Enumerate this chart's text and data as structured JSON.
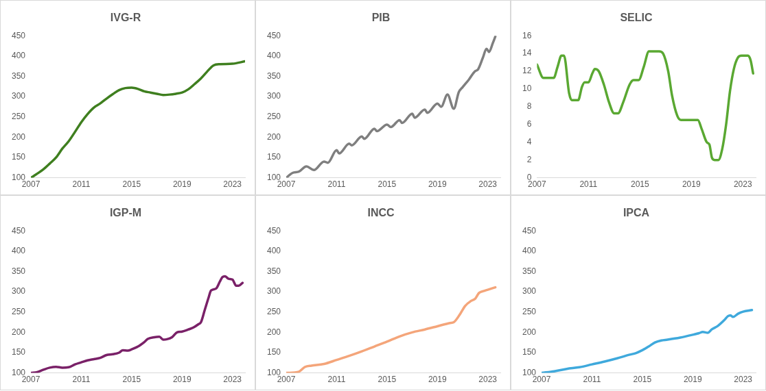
{
  "chart_data": [
    {
      "type": "line",
      "title": "IVG-R",
      "x": [
        2007,
        2007.5,
        2008,
        2008.5,
        2009,
        2009.5,
        2010,
        2010.5,
        2011,
        2011.5,
        2012,
        2012.5,
        2013,
        2013.5,
        2014,
        2014.5,
        2015,
        2015.5,
        2016,
        2016.5,
        2017,
        2017.5,
        2018,
        2018.5,
        2019,
        2019.5,
        2020,
        2020.5,
        2021,
        2021.5,
        2022,
        2023,
        2024
      ],
      "series": [
        {
          "color": "#3f7f1f",
          "values": [
            100,
            110,
            121,
            135,
            150,
            172,
            190,
            213,
            237,
            257,
            273,
            283,
            295,
            306,
            316,
            321,
            322,
            319,
            313,
            310,
            307,
            304,
            305,
            307,
            310,
            318,
            331,
            345,
            362,
            377,
            380,
            381,
            387
          ]
        }
      ],
      "xlim": [
        2007,
        2024
      ],
      "xticks": [
        2007,
        2011,
        2015,
        2019,
        2023
      ],
      "ylim": [
        100,
        450
      ],
      "yticks": [
        100,
        150,
        200,
        250,
        300,
        350,
        400,
        450
      ]
    },
    {
      "type": "line",
      "title": "PIB",
      "x": [
        2007,
        2007.5,
        2008,
        2008.6,
        2009.2,
        2010,
        2010.3,
        2011,
        2011.2,
        2012,
        2012.2,
        2013,
        2013.2,
        2014,
        2014.2,
        2015,
        2015.3,
        2016,
        2016.2,
        2017,
        2017.2,
        2018,
        2018.2,
        2019,
        2019.3,
        2019.8,
        2020.3,
        2020.7,
        2021,
        2021.5,
        2022,
        2022.2,
        2022.6,
        2022.9,
        2023.1,
        2023.4,
        2023.6
      ],
      "series": [
        {
          "color": "#7f7f7f",
          "values": [
            100,
            112,
            115,
            128,
            119,
            140,
            137,
            168,
            160,
            184,
            180,
            202,
            196,
            221,
            215,
            231,
            225,
            242,
            235,
            258,
            248,
            268,
            260,
            283,
            275,
            305,
            270,
            311,
            323,
            342,
            363,
            366,
            395,
            418,
            410,
            432,
            448
          ]
        }
      ],
      "xlim": [
        2007,
        2024
      ],
      "xticks": [
        2007,
        2011,
        2015,
        2019,
        2023
      ],
      "ylim": [
        100,
        450
      ],
      "yticks": [
        100,
        150,
        200,
        250,
        300,
        350,
        400,
        450
      ]
    },
    {
      "type": "line",
      "title": "SELIC",
      "x": [
        2007,
        2007.5,
        2008,
        2008.3,
        2008.6,
        2008.9,
        2009.1,
        2009.5,
        2009.7,
        2010.2,
        2010.5,
        2010.7,
        2011,
        2011.3,
        2011.5,
        2011.8,
        2012.2,
        2012.6,
        2013,
        2013.3,
        2013.7,
        2014.2,
        2014.5,
        2014.9,
        2015.3,
        2015.7,
        2016.5,
        2016.8,
        2017.2,
        2017.5,
        2017.9,
        2018.2,
        2019,
        2019.5,
        2019.8,
        2020.2,
        2020.4,
        2020.6,
        2020.8,
        2021.1,
        2021.4,
        2021.7,
        2022,
        2022.3,
        2022.6,
        2022.9,
        2023.4,
        2023.6,
        2023.8
      ],
      "series": [
        {
          "color": "#5aa832",
          "values": [
            12.75,
            11.25,
            11.25,
            11.25,
            12.5,
            13.75,
            13.75,
            9.5,
            8.75,
            8.75,
            10.25,
            10.75,
            10.75,
            11.75,
            12.25,
            12,
            10.5,
            8.5,
            7.25,
            7.25,
            8.5,
            10.5,
            11,
            11,
            12.5,
            14.25,
            14.25,
            14,
            12,
            9.25,
            7,
            6.5,
            6.5,
            6.5,
            5.5,
            4,
            3.75,
            2.25,
            2,
            2,
            3.25,
            6,
            9.75,
            12.25,
            13.5,
            13.75,
            13.75,
            13.25,
            11.75
          ]
        }
      ],
      "xlim": [
        2007,
        2024
      ],
      "xticks": [
        2007,
        2011,
        2015,
        2019,
        2023
      ],
      "ylim": [
        0,
        16
      ],
      "yticks": [
        0,
        2,
        4,
        6,
        8,
        10,
        12,
        14,
        16
      ]
    },
    {
      "type": "line",
      "title": "IGP-M",
      "x": [
        2007,
        2007.5,
        2008,
        2008.5,
        2009,
        2009.5,
        2010,
        2010.5,
        2011,
        2011.5,
        2012,
        2012.5,
        2013,
        2013.5,
        2014,
        2014.3,
        2014.7,
        2015,
        2015.5,
        2016,
        2016.3,
        2016.8,
        2017.2,
        2017.5,
        2017.8,
        2018.2,
        2018.6,
        2019,
        2019.5,
        2019.9,
        2020.3,
        2020.5,
        2020.8,
        2021.1,
        2021.3,
        2021.7,
        2022,
        2022.2,
        2022.4,
        2022.7,
        2023,
        2023.3,
        2023.5,
        2023.8
      ],
      "series": [
        {
          "color": "#7a2168",
          "values": [
            100,
            102,
            108,
            113,
            115,
            113,
            114,
            121,
            126,
            131,
            134,
            137,
            144,
            146,
            150,
            156,
            155,
            158,
            165,
            176,
            184,
            188,
            189,
            182,
            183,
            188,
            200,
            202,
            207,
            212,
            220,
            225,
            255,
            285,
            303,
            308,
            325,
            336,
            338,
            332,
            330,
            315,
            315,
            322
          ]
        }
      ],
      "xlim": [
        2007,
        2024
      ],
      "xticks": [
        2007,
        2011,
        2015,
        2019,
        2023
      ],
      "ylim": [
        100,
        450
      ],
      "yticks": [
        100,
        150,
        200,
        250,
        300,
        350,
        400,
        450
      ]
    },
    {
      "type": "line",
      "title": "INCC",
      "x": [
        2007,
        2008,
        2008.5,
        2009,
        2010,
        2011,
        2012,
        2013,
        2014,
        2015,
        2016,
        2017,
        2018,
        2019,
        2020,
        2020.3,
        2020.8,
        2021.2,
        2021.7,
        2022,
        2022.3,
        2022.7,
        2023,
        2023.6
      ],
      "series": [
        {
          "color": "#f4a57a",
          "values": [
            100,
            103,
            115,
            118,
            122,
            132,
            142,
            153,
            165,
            177,
            190,
            200,
            207,
            215,
            223,
            225,
            245,
            265,
            278,
            283,
            297,
            302,
            305,
            311
          ]
        }
      ],
      "xlim": [
        2007,
        2024
      ],
      "xticks": [
        2007,
        2011,
        2015,
        2019,
        2023
      ],
      "ylim": [
        100,
        450
      ],
      "yticks": [
        100,
        150,
        200,
        250,
        300,
        350,
        400,
        450
      ]
    },
    {
      "type": "line",
      "title": "IPCA",
      "x": [
        2007,
        2008,
        2009,
        2010,
        2011,
        2012,
        2013,
        2014,
        2014.5,
        2015,
        2015.5,
        2016,
        2016.5,
        2017,
        2018,
        2019,
        2019.5,
        2019.8,
        2020.2,
        2020.5,
        2021,
        2021.5,
        2021.8,
        2022,
        2022.2,
        2022.6,
        2023,
        2023.7
      ],
      "series": [
        {
          "color": "#3fa9dc",
          "values": [
            100,
            104,
            110,
            114,
            121,
            128,
            136,
            145,
            149,
            156,
            165,
            175,
            180,
            182,
            187,
            194,
            198,
            201,
            199,
            207,
            216,
            230,
            240,
            242,
            238,
            246,
            251,
            255
          ]
        }
      ],
      "xlim": [
        2007,
        2024
      ],
      "xticks": [
        2007,
        2011,
        2015,
        2019,
        2023
      ],
      "ylim": [
        100,
        450
      ],
      "yticks": [
        100,
        150,
        200,
        250,
        300,
        350,
        400,
        450
      ]
    }
  ]
}
